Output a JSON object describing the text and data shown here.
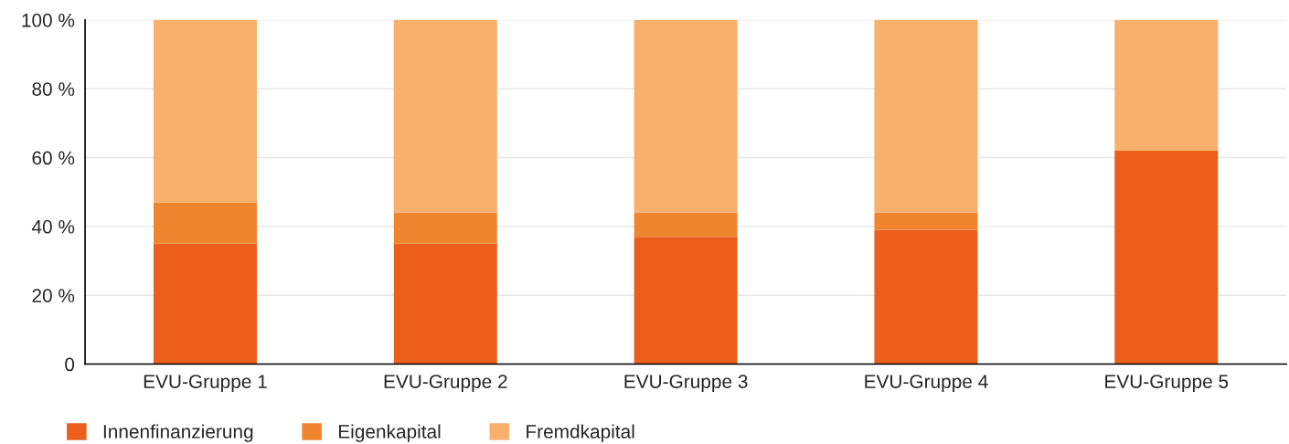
{
  "chart_data": {
    "type": "bar",
    "stacked": true,
    "categories": [
      "EVU-Gruppe 1",
      "EVU-Gruppe 2",
      "EVU-Gruppe 3",
      "EVU-Gruppe 4",
      "EVU-Gruppe 5"
    ],
    "series": [
      {
        "name": "Innenfinanzierung",
        "color": "#eb5e1c",
        "values": [
          35,
          35,
          37,
          39,
          62
        ]
      },
      {
        "name": "Eigenkapital",
        "color": "#f08530",
        "values": [
          12,
          9,
          7,
          5,
          0
        ]
      },
      {
        "name": "Fremdkapital",
        "color": "#f8b06c",
        "values": [
          53,
          56,
          56,
          56,
          38
        ]
      }
    ],
    "ylim": [
      0,
      100
    ],
    "yticks": [
      {
        "value": 0,
        "label": "0"
      },
      {
        "value": 20,
        "label": "20 %"
      },
      {
        "value": 40,
        "label": "40 %"
      },
      {
        "value": 60,
        "label": "60 %"
      },
      {
        "value": 80,
        "label": "80 %"
      },
      {
        "value": 100,
        "label": "100 %"
      }
    ],
    "grid": "y",
    "legend": "bottom left"
  }
}
